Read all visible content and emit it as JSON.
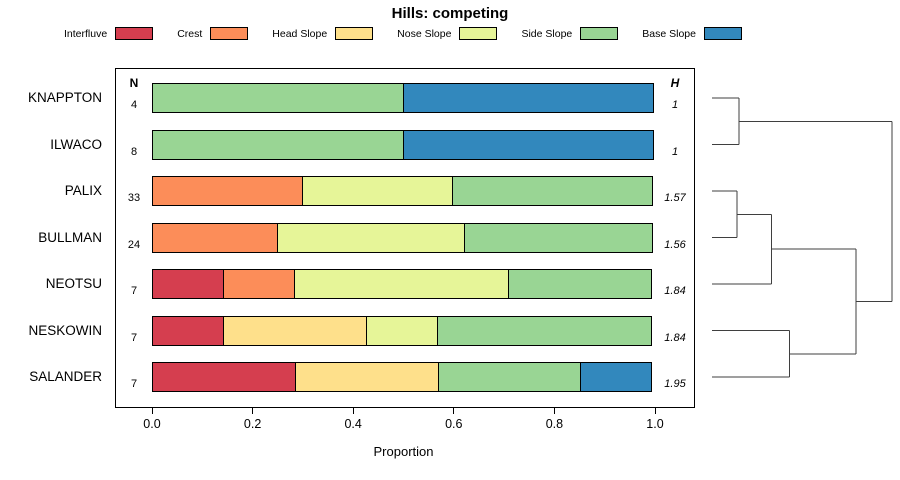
{
  "title": "Hills: competing",
  "legend": {
    "items": [
      {
        "label": "Interfluve",
        "color": "#d53e4f"
      },
      {
        "label": "Crest",
        "color": "#fc8d59"
      },
      {
        "label": "Head Slope",
        "color": "#fee08b"
      },
      {
        "label": "Nose Slope",
        "color": "#e6f598"
      },
      {
        "label": "Side Slope",
        "color": "#99d594"
      },
      {
        "label": "Base Slope",
        "color": "#3288bd"
      }
    ]
  },
  "chart_data": {
    "type": "bar",
    "orientation": "horizontal",
    "stacked": true,
    "title": "Hills: competing",
    "xlabel": "Proportion",
    "xlim": [
      0,
      1
    ],
    "xticks": [
      0,
      0.2,
      0.4,
      0.6,
      0.8,
      1
    ],
    "xtick_labels": [
      "0.0",
      "0.2",
      "0.4",
      "0.6",
      "0.8",
      "1.0"
    ],
    "n_header": "N",
    "h_header": "H",
    "categories_legend": [
      "Interfluve",
      "Crest",
      "Head Slope",
      "Nose Slope",
      "Side Slope",
      "Base Slope"
    ],
    "rows": [
      {
        "label": "KNAPPTON",
        "n": 4,
        "h": "1",
        "segments": [
          {
            "category": "Side Slope",
            "value": 0.5
          },
          {
            "category": "Base Slope",
            "value": 0.5
          }
        ]
      },
      {
        "label": "ILWACO",
        "n": 8,
        "h": "1",
        "segments": [
          {
            "category": "Side Slope",
            "value": 0.5
          },
          {
            "category": "Base Slope",
            "value": 0.5
          }
        ]
      },
      {
        "label": "PALIX",
        "n": 33,
        "h": "1.57",
        "segments": [
          {
            "category": "Crest",
            "value": 0.3
          },
          {
            "category": "Nose Slope",
            "value": 0.3
          },
          {
            "category": "Side Slope",
            "value": 0.4
          }
        ]
      },
      {
        "label": "BULLMAN",
        "n": 24,
        "h": "1.56",
        "segments": [
          {
            "category": "Crest",
            "value": 0.25
          },
          {
            "category": "Nose Slope",
            "value": 0.375
          },
          {
            "category": "Side Slope",
            "value": 0.375
          }
        ]
      },
      {
        "label": "NEOTSU",
        "n": 7,
        "h": "1.84",
        "segments": [
          {
            "category": "Interfluve",
            "value": 0.143
          },
          {
            "category": "Crest",
            "value": 0.143
          },
          {
            "category": "Nose Slope",
            "value": 0.428
          },
          {
            "category": "Side Slope",
            "value": 0.286
          }
        ]
      },
      {
        "label": "NESKOWIN",
        "n": 7,
        "h": "1.84",
        "segments": [
          {
            "category": "Interfluve",
            "value": 0.143
          },
          {
            "category": "Head Slope",
            "value": 0.286
          },
          {
            "category": "Nose Slope",
            "value": 0.143
          },
          {
            "category": "Side Slope",
            "value": 0.428
          }
        ]
      },
      {
        "label": "SALANDER",
        "n": 7,
        "h": "1.95",
        "segments": [
          {
            "category": "Interfluve",
            "value": 0.286
          },
          {
            "category": "Head Slope",
            "value": 0.286
          },
          {
            "category": "Side Slope",
            "value": 0.285
          },
          {
            "category": "Base Slope",
            "value": 0.143
          }
        ]
      }
    ],
    "dendrogram": {
      "line_color": "#3f3f3f",
      "merges": [
        {
          "a": "KNAPPTON",
          "b": "ILWACO",
          "height": 0.15
        },
        {
          "a": "PALIX",
          "b": "BULLMAN",
          "height": 0.14
        },
        {
          "a": "#1",
          "b": "NEOTSU",
          "height": 0.33
        },
        {
          "a": "NESKOWIN",
          "b": "SALANDER",
          "height": 0.43
        },
        {
          "a": "#2",
          "b": "#3",
          "height": 0.8
        },
        {
          "a": "#0",
          "b": "#4",
          "height": 1.0
        }
      ]
    }
  }
}
